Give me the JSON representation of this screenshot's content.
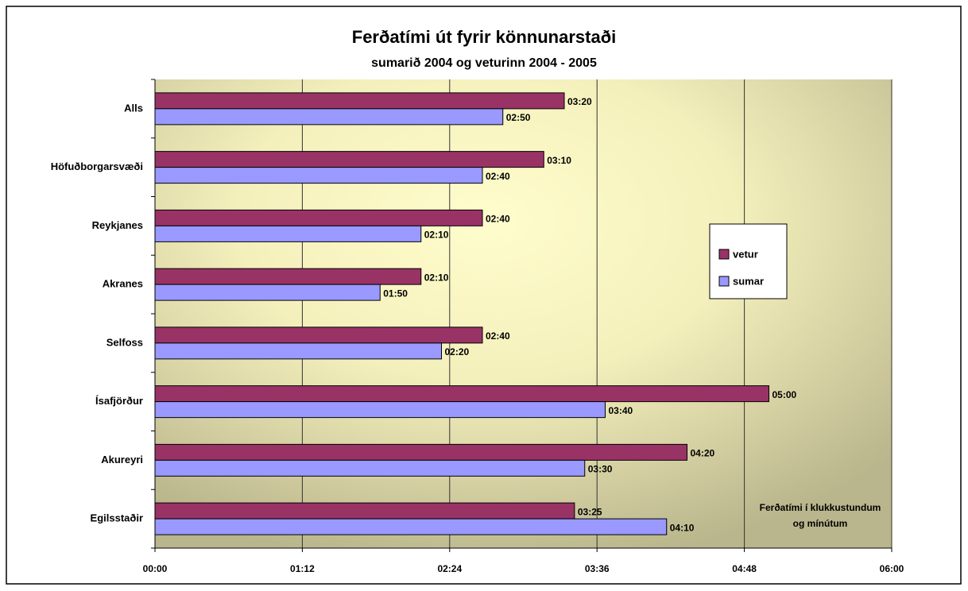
{
  "chart_data": {
    "type": "hbar",
    "title": "Ferðatími út fyrir könnunarstaði",
    "subtitle": "sumarið 2004 og veturinn 2004 - 2005",
    "annotation": [
      "Ferðatími í klukkustundum",
      "og mínútum"
    ],
    "categories": [
      "Alls",
      "Höfuðborgarsvæði",
      "Reykjanes",
      "Akranes",
      "Selfoss",
      "Ísafjörður",
      "Akureyri",
      "Egilsstaðir"
    ],
    "series": [
      {
        "name": "vetur",
        "color": "#993366",
        "values": [
          200,
          190,
          160,
          130,
          160,
          300,
          260,
          205
        ],
        "value_labels": [
          "03:20",
          "03:10",
          "02:40",
          "02:10",
          "02:40",
          "05:00",
          "04:20",
          "03:25"
        ]
      },
      {
        "name": "sumar",
        "color": "#9999ff",
        "values": [
          170,
          160,
          130,
          110,
          140,
          220,
          210,
          250
        ],
        "value_labels": [
          "02:50",
          "02:40",
          "02:10",
          "01:50",
          "02:20",
          "03:40",
          "03:30",
          "04:10"
        ]
      }
    ],
    "xlim": [
      0,
      360
    ],
    "xticks": [
      {
        "value": 0,
        "label": "00:00"
      },
      {
        "value": 72,
        "label": "01:12"
      },
      {
        "value": 144,
        "label": "02:24"
      },
      {
        "value": 216,
        "label": "03:36"
      },
      {
        "value": 288,
        "label": "04:48"
      },
      {
        "value": 360,
        "label": "06:00"
      }
    ],
    "grid": true,
    "legend": "right"
  }
}
